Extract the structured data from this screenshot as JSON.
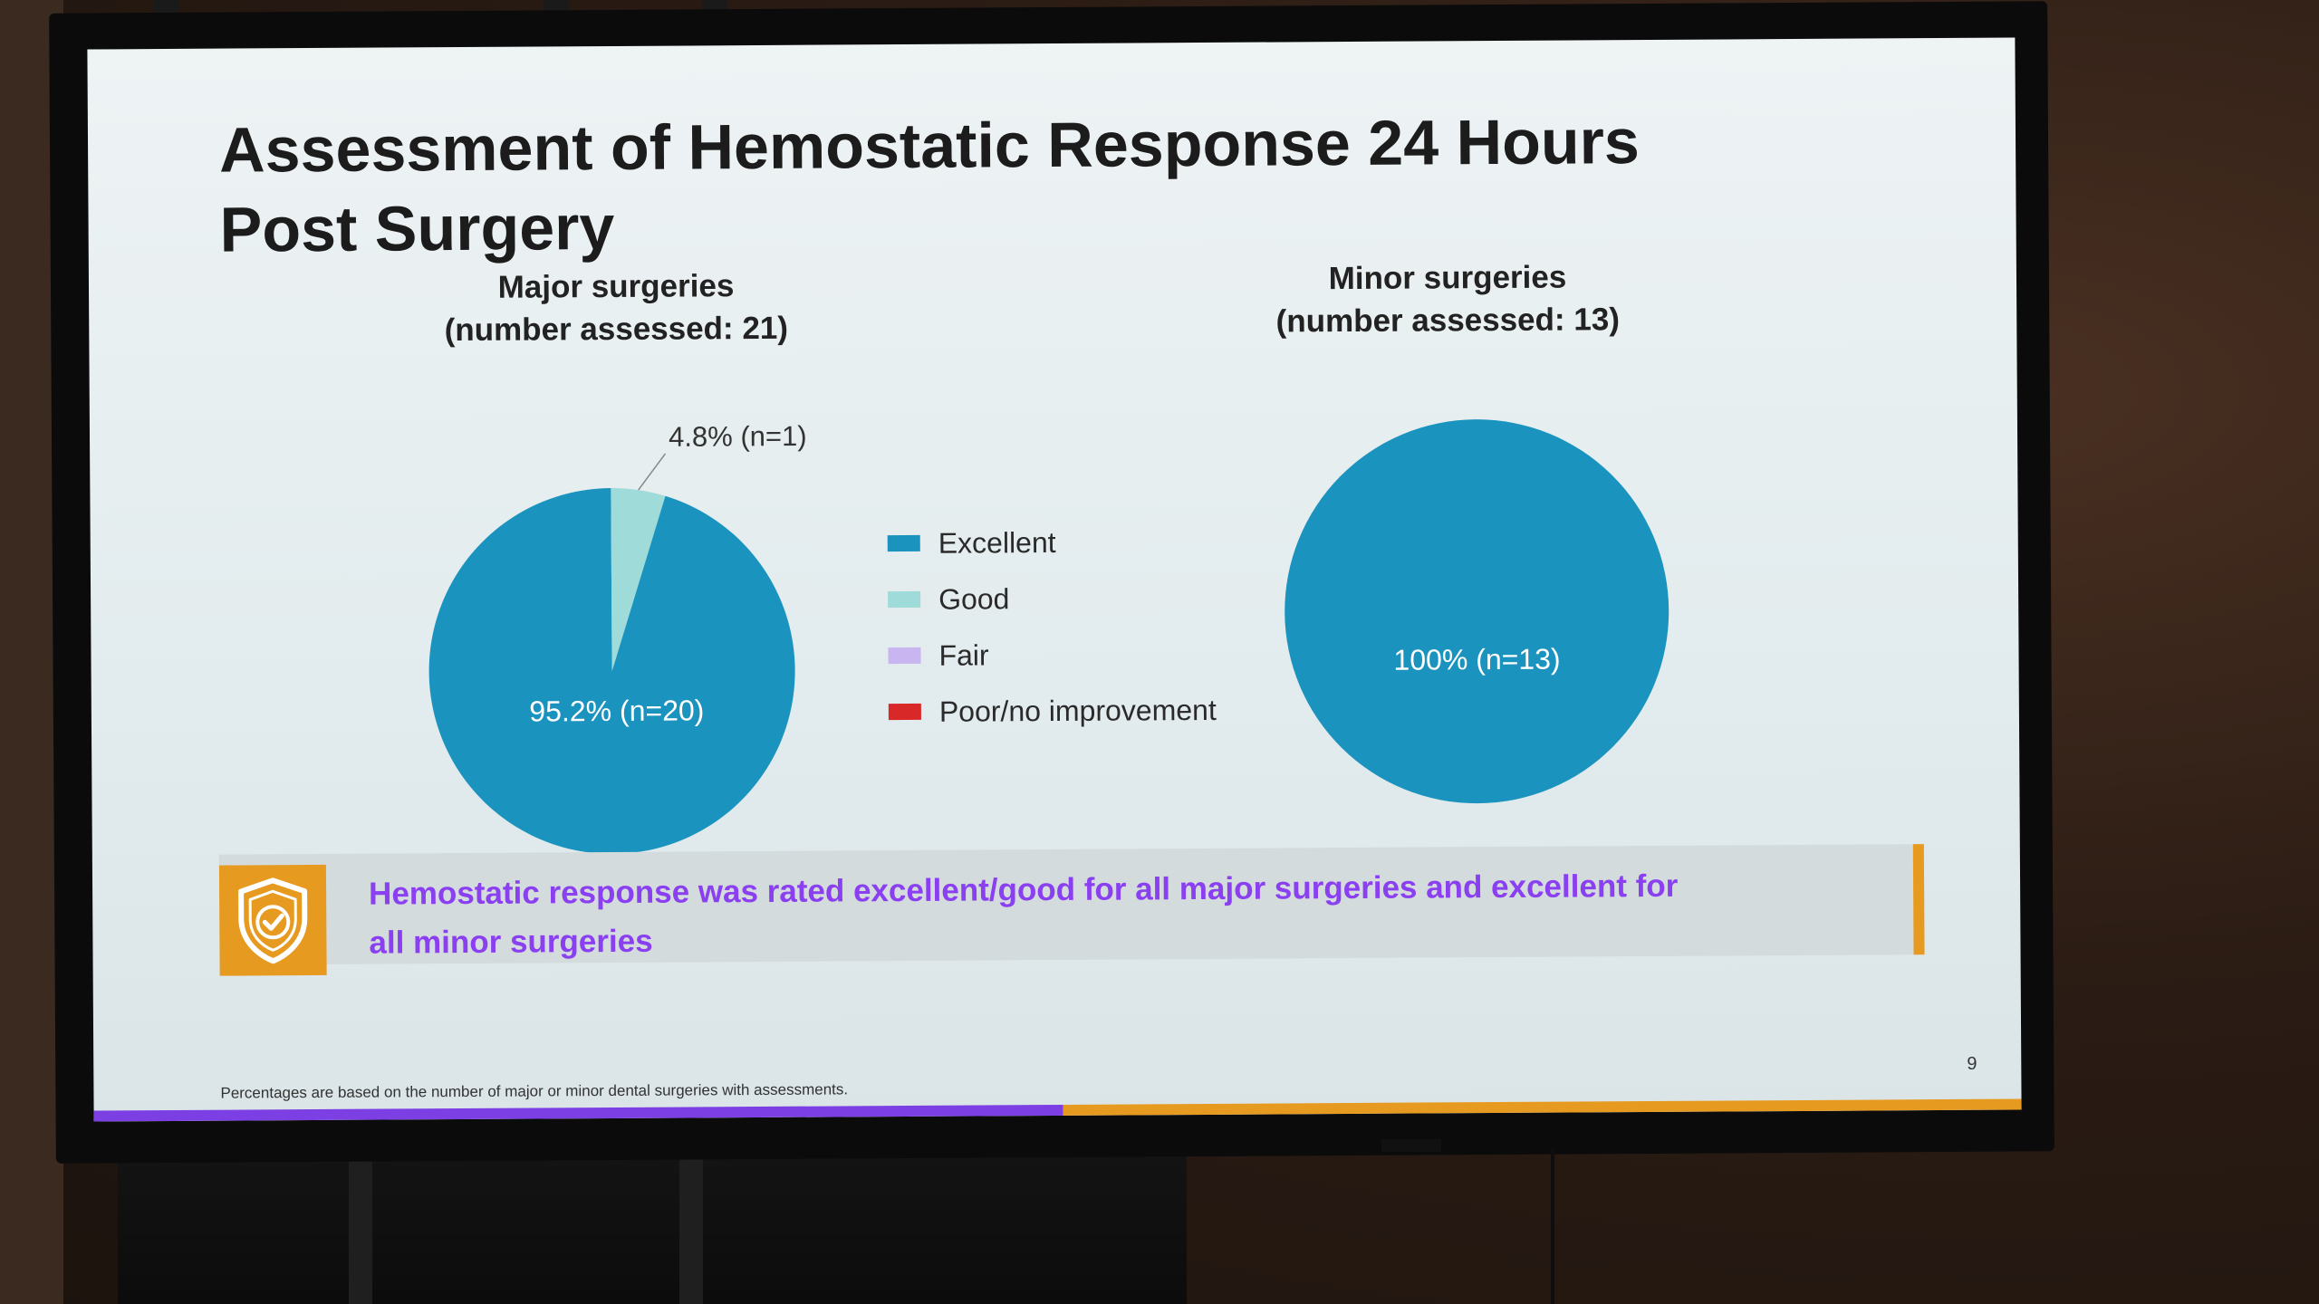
{
  "slide": {
    "title": "Assessment of Hemostatic Response 24 Hours Post Surgery",
    "footnote": "Percentages are based on the number of major or minor dental surgeries with assessments.",
    "page_number": "9",
    "callout": {
      "text": "Hemostatic response was rated excellent/good for all major surgeries and excellent for all minor surgeries",
      "icon": "shield-check-icon"
    }
  },
  "legend": [
    {
      "label": "Excellent",
      "color": "#1b93bf"
    },
    {
      "label": "Good",
      "color": "#9fdbd9"
    },
    {
      "label": "Fair",
      "color": "#c9b6f0"
    },
    {
      "label": "Poor/no improvement",
      "color": "#d92828"
    }
  ],
  "chart_data": [
    {
      "type": "pie",
      "title_line1": "Major surgeries",
      "title_line2": "(number assessed: 21)",
      "categories": [
        "Excellent",
        "Good"
      ],
      "values": [
        95.2,
        4.8
      ],
      "labels": [
        "95.2% (n=20)",
        "4.8% (n=1)"
      ],
      "colors": [
        "#1b93bf",
        "#9fdbd9"
      ]
    },
    {
      "type": "pie",
      "title_line1": "Minor surgeries",
      "title_line2": "(number assessed: 13)",
      "categories": [
        "Excellent"
      ],
      "values": [
        100
      ],
      "labels": [
        "100% (n=13)"
      ],
      "colors": [
        "#1b93bf"
      ]
    }
  ]
}
